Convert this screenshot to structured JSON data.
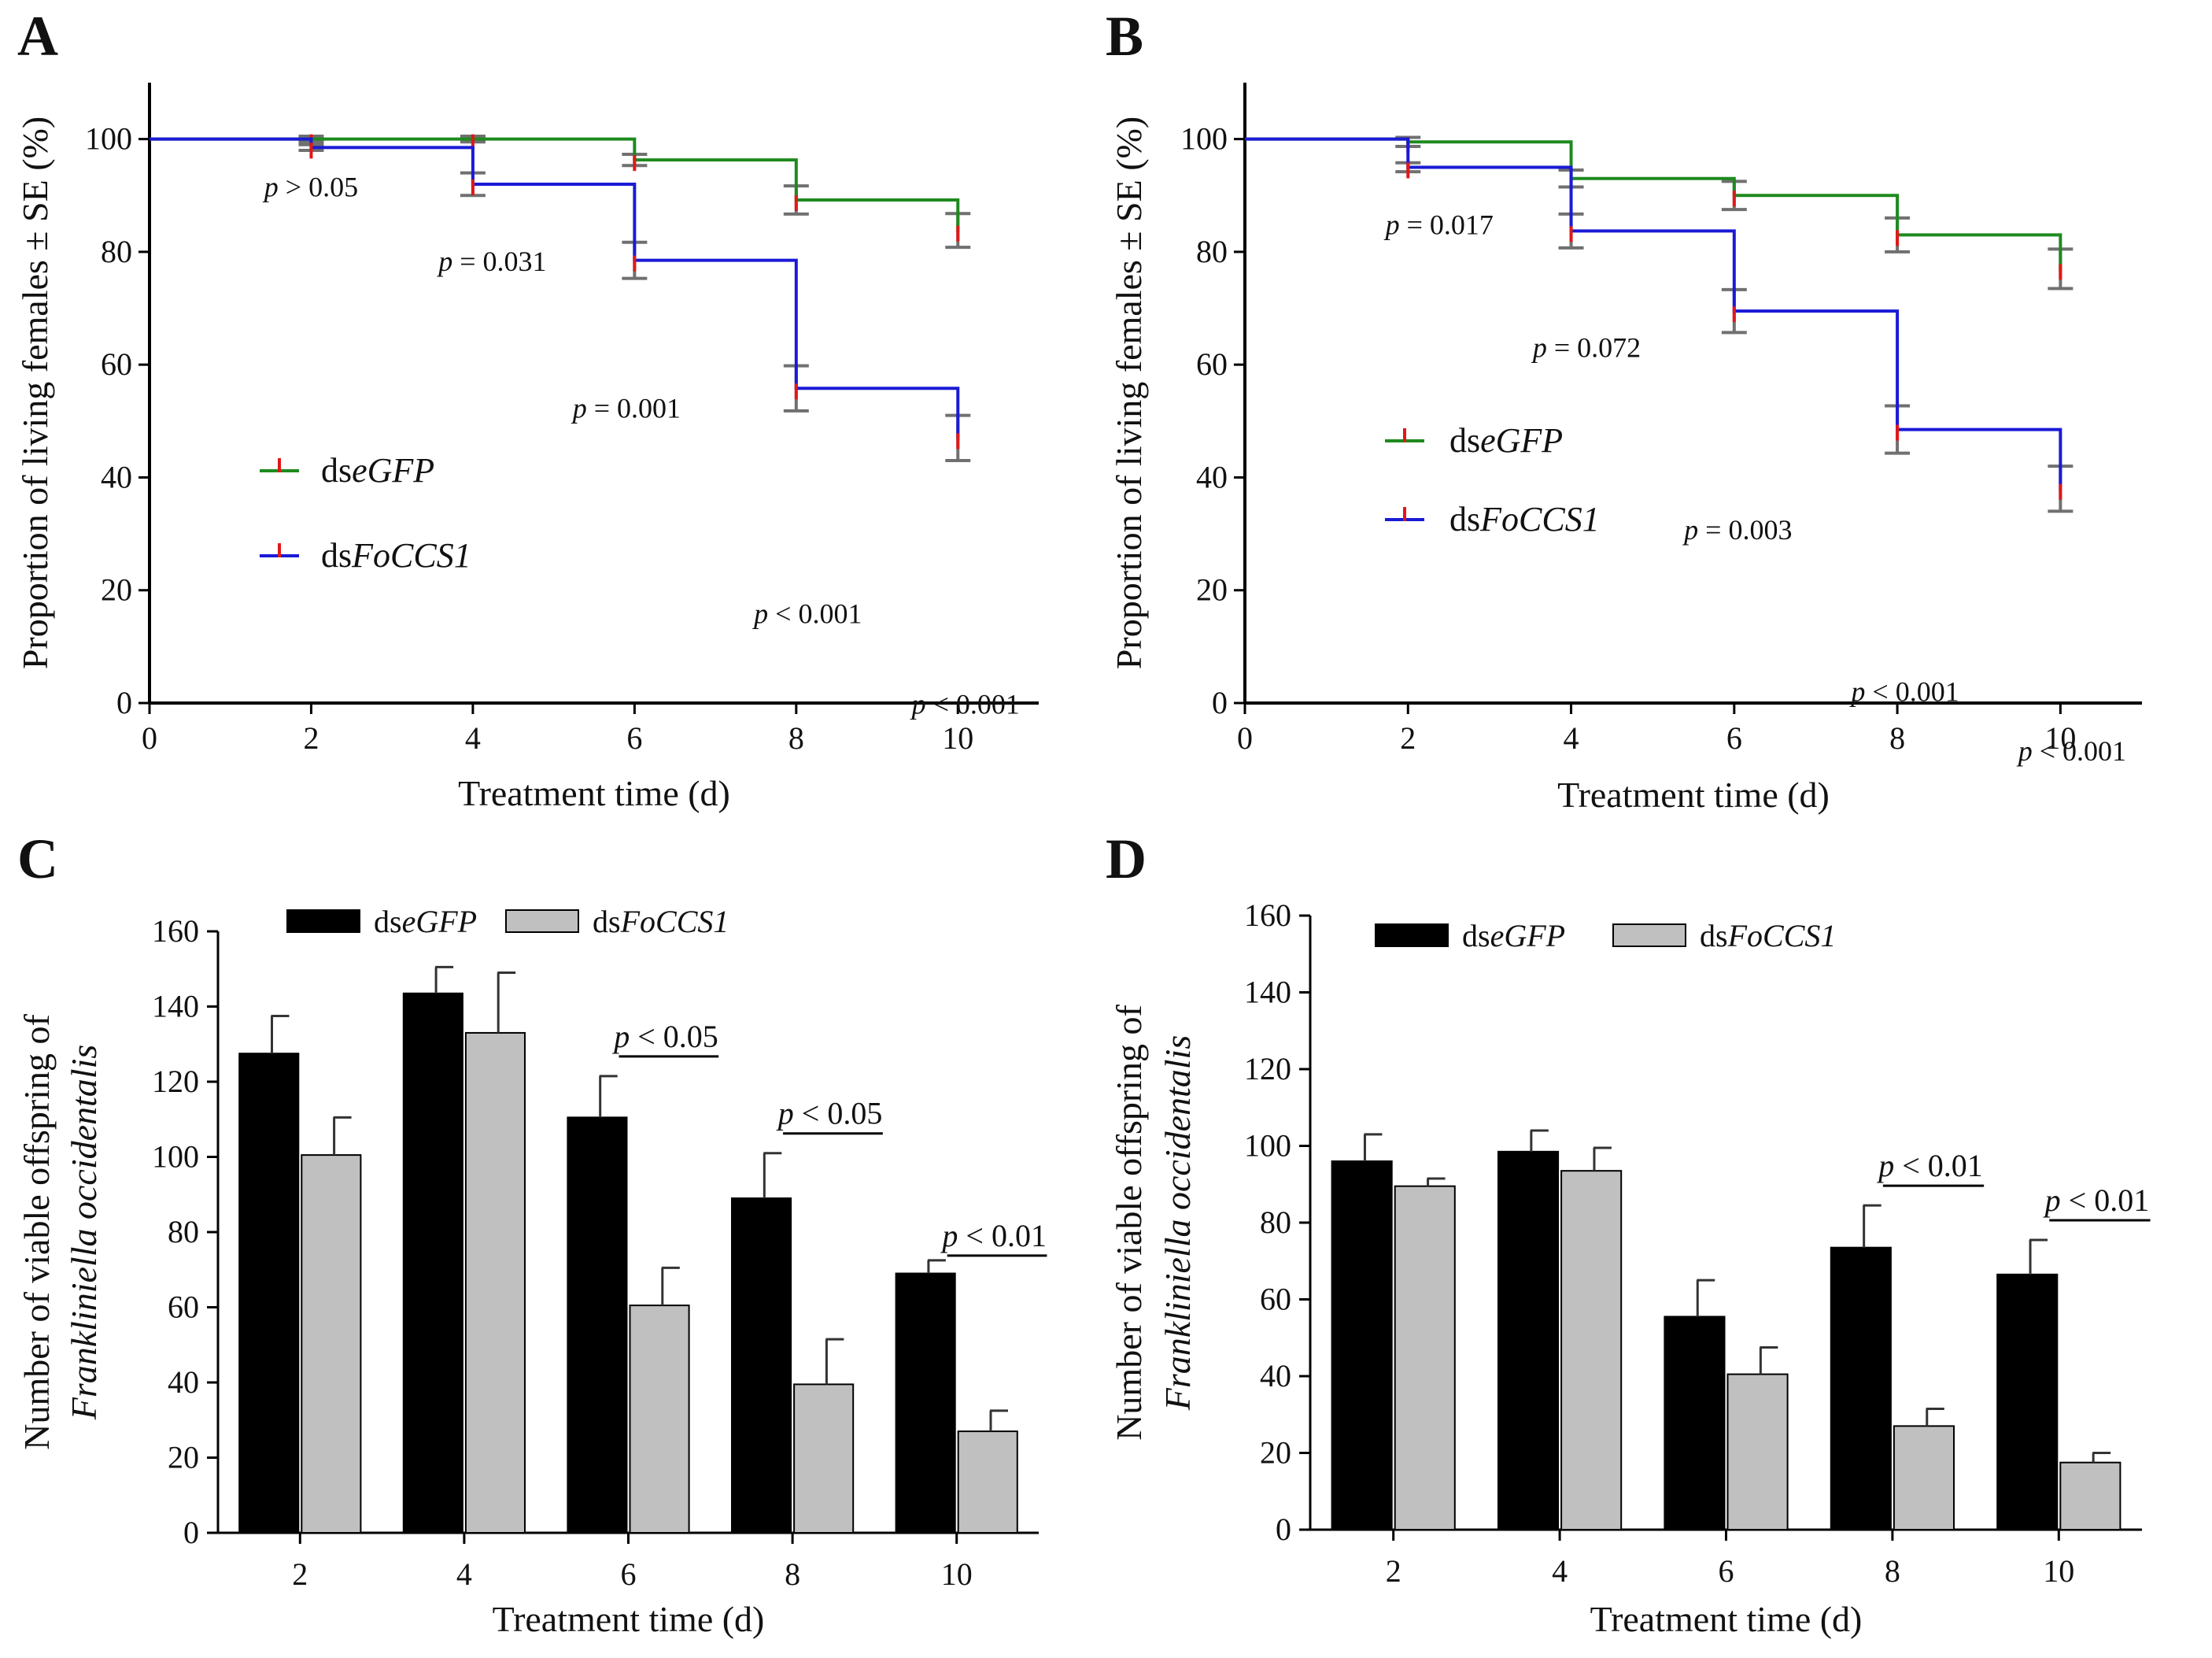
{
  "chart_data": [
    {
      "panel": "A",
      "type": "line",
      "step": true,
      "xlabel": "Treatment time (d)",
      "ylabel": "Proportion of living females ± SE (%)",
      "xlim": [
        0,
        11
      ],
      "ylim": [
        0,
        110
      ],
      "xticks": [
        0,
        2,
        4,
        6,
        8,
        10
      ],
      "yticks": [
        0,
        20,
        40,
        60,
        80,
        100
      ],
      "series": [
        {
          "name": "dseGFP",
          "prefix": "ds",
          "italic": "eGFP",
          "color": "#1e8a1e",
          "x": [
            0,
            2,
            4,
            6,
            8,
            10
          ],
          "values": [
            100,
            100,
            100,
            96.3,
            89.2,
            83.8
          ],
          "se": [
            0,
            0.5,
            0.5,
            1.0,
            2.5,
            3.0
          ]
        },
        {
          "name": "dsFoCCS1",
          "prefix": "ds",
          "italic": "FoCCS1",
          "color": "#1a1ad6",
          "x": [
            0,
            2,
            4,
            6,
            8,
            10
          ],
          "values": [
            100,
            98.5,
            92.0,
            78.5,
            55.8,
            47.0
          ],
          "se": [
            0,
            0.5,
            2.0,
            3.2,
            4.0,
            4.0
          ]
        }
      ],
      "pvalues": [
        {
          "x": 2,
          "text": "p > 0.05"
        },
        {
          "x": 4,
          "text": "p = 0.031"
        },
        {
          "x": 6,
          "text": "p = 0.001"
        },
        {
          "x": 8,
          "text": "p < 0.001"
        },
        {
          "x": 10,
          "text": "p < 0.001"
        }
      ],
      "legend": "center-left"
    },
    {
      "panel": "B",
      "type": "line",
      "step": true,
      "xlabel": "Treatment time (d)",
      "ylabel": "Proportion of living females ± SE (%)",
      "xlim": [
        0,
        11
      ],
      "ylim": [
        0,
        110
      ],
      "xticks": [
        0,
        2,
        4,
        6,
        8,
        10
      ],
      "yticks": [
        0,
        20,
        40,
        60,
        80,
        100
      ],
      "series": [
        {
          "name": "dseGFP",
          "prefix": "ds",
          "italic": "eGFP",
          "color": "#1e8a1e",
          "x": [
            0,
            2,
            4,
            6,
            8,
            10
          ],
          "values": [
            100,
            99.5,
            93.0,
            90.0,
            83.0,
            77.0
          ],
          "se": [
            0,
            0.8,
            1.5,
            2.5,
            3.0,
            3.5
          ]
        },
        {
          "name": "dsFoCCS1",
          "prefix": "ds",
          "italic": "FoCCS1",
          "color": "#1a1ad6",
          "x": [
            0,
            2,
            4,
            6,
            8,
            10
          ],
          "values": [
            100,
            95.0,
            83.7,
            69.5,
            48.5,
            38.0
          ],
          "se": [
            0,
            0.8,
            3.0,
            3.8,
            4.2,
            4.0
          ]
        }
      ],
      "pvalues": [
        {
          "x": 2,
          "text": "p = 0.017"
        },
        {
          "x": 4,
          "text": "p = 0.072"
        },
        {
          "x": 6,
          "text": "p = 0.003"
        },
        {
          "x": 8,
          "text": "p < 0.001"
        },
        {
          "x": 10,
          "text": "p < 0.001"
        }
      ],
      "legend": "center-left"
    },
    {
      "panel": "C",
      "type": "bar",
      "xlabel": "Treatment time (d)",
      "ylabel_line1": "Number of viable offspring of",
      "ylabel_line2": "Frankliniella occidentalis",
      "categories": [
        "2",
        "4",
        "6",
        "8",
        "10"
      ],
      "ylim": [
        0,
        160
      ],
      "yticks": [
        0,
        20,
        40,
        60,
        80,
        100,
        120,
        140,
        160
      ],
      "series": [
        {
          "name": "dseGFP",
          "prefix": "ds",
          "italic": "eGFP",
          "color": "#000000",
          "values": [
            127.5,
            143.5,
            110.5,
            89.0,
            69.0
          ],
          "errors": [
            10.0,
            7.0,
            11.0,
            12.0,
            3.5
          ]
        },
        {
          "name": "dsFoCCS1",
          "prefix": "ds",
          "italic": "FoCCS1",
          "color": "#c0c0c0",
          "values": [
            100.5,
            133.0,
            60.5,
            39.5,
            27.0
          ],
          "errors": [
            10.0,
            16.0,
            10.0,
            12.0,
            5.5
          ]
        }
      ],
      "significance": [
        {
          "category": "6",
          "text": "p < 0.05"
        },
        {
          "category": "8",
          "text": "p < 0.05"
        },
        {
          "category": "10",
          "text": "p < 0.01"
        }
      ],
      "legend": "top"
    },
    {
      "panel": "D",
      "type": "bar",
      "xlabel": "Treatment time (d)",
      "ylabel_line1": "Number of viable offspring of",
      "ylabel_line2": "Frankliniella occidentalis",
      "categories": [
        "2",
        "4",
        "6",
        "8",
        "10"
      ],
      "ylim": [
        0,
        160
      ],
      "yticks": [
        0,
        20,
        40,
        60,
        80,
        100,
        120,
        140,
        160
      ],
      "series": [
        {
          "name": "dseGFP",
          "prefix": "ds",
          "italic": "eGFP",
          "color": "#000000",
          "values": [
            96.0,
            98.5,
            55.5,
            73.5,
            66.5
          ],
          "errors": [
            7.0,
            5.5,
            9.5,
            11.0,
            9.0
          ]
        },
        {
          "name": "dsFoCCS1",
          "prefix": "ds",
          "italic": "FoCCS1",
          "color": "#c0c0c0",
          "values": [
            89.5,
            93.5,
            40.5,
            27.0,
            17.5
          ],
          "errors": [
            2.0,
            6.0,
            7.0,
            4.5,
            2.5
          ]
        }
      ],
      "significance": [
        {
          "category": "8",
          "text": "p < 0.01"
        },
        {
          "category": "10",
          "text": "p < 0.01"
        }
      ],
      "legend": "top"
    }
  ]
}
